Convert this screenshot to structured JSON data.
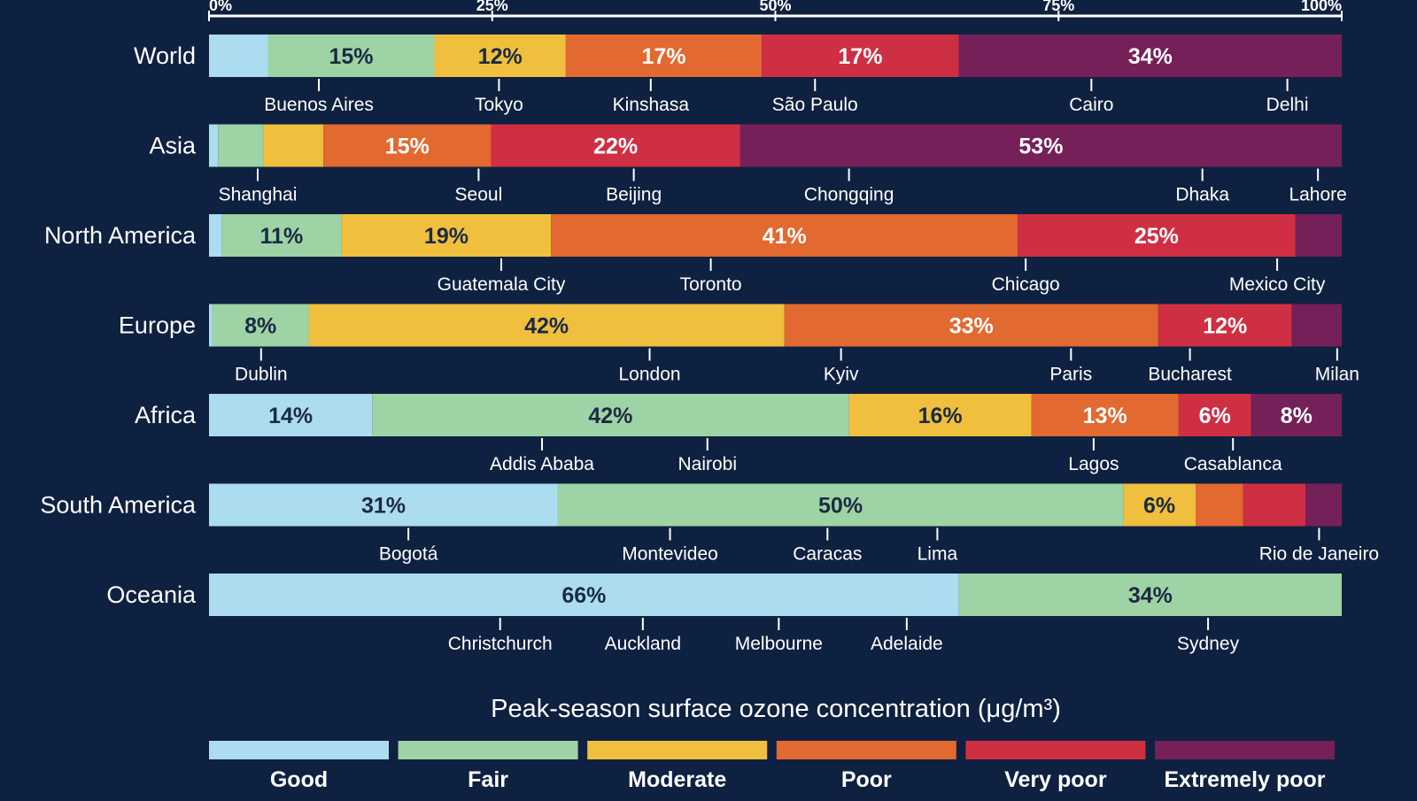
{
  "colors": {
    "background": "#0f2140",
    "Good": "#abdcef",
    "Fair": "#9ed3a6",
    "Moderate": "#f0bf3e",
    "Poor": "#e2692f",
    "Very poor": "#cf2f43",
    "Extremely poor": "#752058"
  },
  "chart_data": {
    "type": "bar",
    "orientation": "horizontal-stacked-100",
    "title": "",
    "xlabel": "",
    "ylabel": "",
    "xlim": [
      0,
      100
    ],
    "x_ticks": [
      "0%",
      "25%",
      "50%",
      "75%",
      "100%"
    ],
    "x_tick_values": [
      0,
      25,
      50,
      75,
      100
    ],
    "grid": false,
    "legend": {
      "title": "Peak-season surface ozone concentration (μg/m³)",
      "placement": "bottom",
      "items": [
        "Good",
        "Fair",
        "Moderate",
        "Poor",
        "Very poor",
        "Extremely poor"
      ]
    },
    "categories": [
      "World",
      "Asia",
      "North America",
      "Europe",
      "Africa",
      "South America",
      "Oceania"
    ],
    "series": [
      {
        "name": "Good",
        "values": [
          5.2,
          0.8,
          1.1,
          0.3,
          14.4,
          30.8,
          66.2
        ]
      },
      {
        "name": "Fair",
        "values": [
          14.7,
          4.0,
          10.6,
          8.5,
          42.1,
          49.9,
          33.8
        ]
      },
      {
        "name": "Moderate",
        "values": [
          11.6,
          5.3,
          18.5,
          42.0,
          16.1,
          6.4,
          0
        ]
      },
      {
        "name": "Poor",
        "values": [
          17.3,
          14.8,
          41.2,
          33.0,
          13.0,
          4.2,
          0
        ]
      },
      {
        "name": "Very poor",
        "values": [
          17.4,
          22.0,
          24.5,
          11.8,
          6.4,
          5.5,
          0
        ]
      },
      {
        "name": "Extremely poor",
        "values": [
          33.8,
          53.1,
          4.1,
          4.4,
          8.0,
          3.2,
          0
        ]
      }
    ],
    "segment_labels": [
      [
        "",
        "15%",
        "12%",
        "17%",
        "17%",
        "34%"
      ],
      [
        "",
        "",
        "",
        "15%",
        "22%",
        "53%"
      ],
      [
        "",
        "11%",
        "19%",
        "41%",
        "25%",
        ""
      ],
      [
        "",
        "8%",
        "42%",
        "33%",
        "12%",
        ""
      ],
      [
        "14%",
        "42%",
        "16%",
        "13%",
        "6%",
        "8%"
      ],
      [
        "31%",
        "50%",
        "6%",
        "",
        "",
        ""
      ],
      [
        "66%",
        "34%",
        "",
        "",
        "",
        ""
      ]
    ],
    "cities": [
      [
        {
          "name": "Buenos Aires",
          "x": 9.7
        },
        {
          "name": "Tokyo",
          "x": 25.6
        },
        {
          "name": "Kinshasa",
          "x": 39.0
        },
        {
          "name": "São Paulo",
          "x": 53.5
        },
        {
          "name": "Cairo",
          "x": 77.9
        },
        {
          "name": "Delhi",
          "x": 95.2
        }
      ],
      [
        {
          "name": "Shanghai",
          "x": 4.3
        },
        {
          "name": "Seoul",
          "x": 23.8
        },
        {
          "name": "Beijing",
          "x": 37.5
        },
        {
          "name": "Chongqing",
          "x": 56.5
        },
        {
          "name": "Dhaka",
          "x": 87.7
        },
        {
          "name": "Lahore",
          "x": 97.9
        }
      ],
      [
        {
          "name": "Guatemala City",
          "x": 25.8
        },
        {
          "name": "Toronto",
          "x": 44.3
        },
        {
          "name": "Chicago",
          "x": 72.1
        },
        {
          "name": "Mexico City",
          "x": 94.3
        }
      ],
      [
        {
          "name": "Dublin",
          "x": 4.6
        },
        {
          "name": "London",
          "x": 38.9
        },
        {
          "name": "Kyiv",
          "x": 55.8
        },
        {
          "name": "Paris",
          "x": 76.1
        },
        {
          "name": "Bucharest",
          "x": 86.6
        },
        {
          "name": "Milan",
          "x": 99.6
        }
      ],
      [
        {
          "name": "Addis Ababa",
          "x": 29.4
        },
        {
          "name": "Nairobi",
          "x": 44.0
        },
        {
          "name": "Lagos",
          "x": 78.1
        },
        {
          "name": "Casablanca",
          "x": 90.4
        }
      ],
      [
        {
          "name": "Bogotá",
          "x": 17.6
        },
        {
          "name": "Montevideo",
          "x": 40.7
        },
        {
          "name": "Caracas",
          "x": 54.6
        },
        {
          "name": "Lima",
          "x": 64.3
        },
        {
          "name": "Rio de Janeiro",
          "x": 98.0
        }
      ],
      [
        {
          "name": "Christchurch",
          "x": 25.7
        },
        {
          "name": "Auckland",
          "x": 38.3
        },
        {
          "name": "Melbourne",
          "x": 50.3
        },
        {
          "name": "Adelaide",
          "x": 61.6
        },
        {
          "name": "Sydney",
          "x": 88.2
        }
      ]
    ]
  }
}
